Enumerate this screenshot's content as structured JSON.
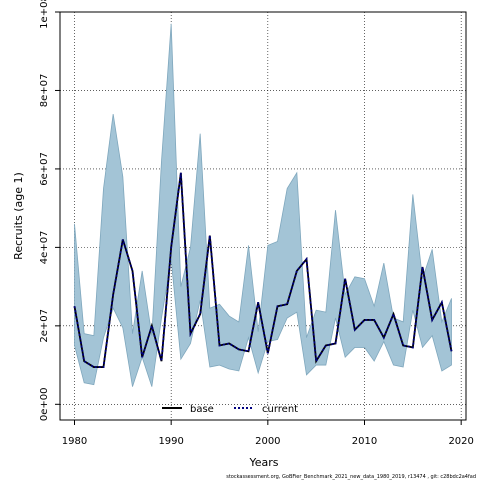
{
  "chart_data": {
    "type": "line",
    "xlabel": "Years",
    "ylabel": "Recruits (age 1)",
    "xlim": [
      1978.5,
      2020.5
    ],
    "ylim": [
      -4000000,
      100000000
    ],
    "x_ticks": [
      1980,
      1990,
      2000,
      2010,
      2020
    ],
    "y_ticks": [
      0,
      20000000,
      40000000,
      60000000,
      80000000,
      100000000
    ],
    "y_tick_labels": [
      "0e+00",
      "2e+07",
      "4e+07",
      "6e+07",
      "8e+07",
      "1e+08"
    ],
    "grid": "dotted",
    "legend_position": "bottom-center",
    "band_color": "#a3c4d6",
    "band_edge_color": "#7fa7bd",
    "x": [
      1980,
      1981,
      1982,
      1983,
      1984,
      1985,
      1986,
      1987,
      1988,
      1989,
      1990,
      1991,
      1992,
      1993,
      1994,
      1995,
      1996,
      1997,
      1998,
      1999,
      2000,
      2001,
      2002,
      2003,
      2004,
      2005,
      2006,
      2007,
      2008,
      2009,
      2010,
      2011,
      2012,
      2013,
      2014,
      2015,
      2016,
      2017,
      2018,
      2019
    ],
    "series": [
      {
        "name": "base",
        "style": "solid",
        "color": "#000000",
        "values": [
          25000000,
          11000000,
          9500000,
          9500000,
          28000000,
          42000000,
          34000000,
          12000000,
          20000000,
          11000000,
          40000000,
          59000000,
          18000000,
          23000000,
          43000000,
          15000000,
          15500000,
          14000000,
          13500000,
          26000000,
          13000000,
          25000000,
          25500000,
          34000000,
          37000000,
          11000000,
          15000000,
          15500000,
          32000000,
          19000000,
          21500000,
          21500000,
          17000000,
          23000000,
          15000000,
          14500000,
          35000000,
          21500000,
          26000000,
          13500000
        ]
      },
      {
        "name": "current",
        "style": "dotted",
        "color": "#000080",
        "values": [
          25000000,
          11000000,
          9500000,
          9500000,
          28000000,
          42000000,
          34000000,
          12000000,
          20000000,
          11000000,
          40000000,
          59000000,
          18000000,
          23000000,
          43000000,
          15000000,
          15500000,
          14000000,
          13500000,
          26000000,
          13000000,
          25000000,
          25500000,
          34000000,
          37000000,
          11000000,
          15000000,
          15500000,
          32000000,
          19000000,
          21500000,
          21500000,
          17000000,
          23000000,
          15000000,
          14500000,
          35000000,
          21500000,
          26000000,
          13500000
        ]
      }
    ],
    "band_upper": [
      46000000,
      18000000,
      17500000,
      55000000,
      74000000,
      58000000,
      18000000,
      34000000,
      17500000,
      62000000,
      97000000,
      30000000,
      40000000,
      69000000,
      24500000,
      25500000,
      22500000,
      21000000,
      40500000,
      18500000,
      40500000,
      41500000,
      55000000,
      59000000,
      17000000,
      24000000,
      23500000,
      49500000,
      28000000,
      32500000,
      32000000,
      25000000,
      36000000,
      22000000,
      21000000,
      53500000,
      32000000,
      39500000,
      21000000,
      27000000
    ],
    "band_lower": [
      15000000,
      5500000,
      5000000,
      17000000,
      24500000,
      19500000,
      4500000,
      12000000,
      4500000,
      22000000,
      37000000,
      11500000,
      15500000,
      26500000,
      9500000,
      10000000,
      9000000,
      8500000,
      17000000,
      8000000,
      16000000,
      16500000,
      22000000,
      23500000,
      7500000,
      10000000,
      10000000,
      22000000,
      12000000,
      14500000,
      14500000,
      11000000,
      16000000,
      10000000,
      9500000,
      24000000,
      14500000,
      17500000,
      8500000,
      10000000
    ]
  },
  "legend": {
    "base_label": "base",
    "current_label": "current"
  },
  "footnote": "stockassessment.org, GoBFier_Benchmark_2021_new_data_1980_2019, r13474 , git: c28bdc2a4fad"
}
